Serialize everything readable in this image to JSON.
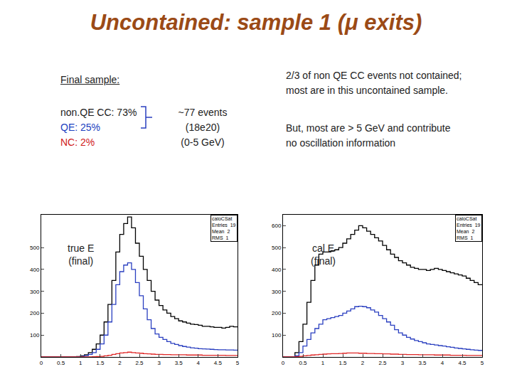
{
  "title": "Uncontained: sample 1 (μ exits)",
  "left_text": {
    "heading": "Final sample:",
    "items": [
      {
        "text": "non.QE CC: 73%",
        "color": "#1a1a1a"
      },
      {
        "text": "QE: 25%",
        "color": "#2040c0"
      },
      {
        "text": "NC: 2%",
        "color": "#d02020"
      }
    ]
  },
  "summary": [
    "~77 events",
    "(18e20)",
    "(0-5 GeV)"
  ],
  "notes": [
    [
      "2/3 of non QE CC events not contained;",
      "most are in this uncontained sample."
    ],
    [
      "But, most are > 5 GeV and contribute",
      "no oscillation information"
    ]
  ],
  "chart_data": [
    {
      "type": "histogram",
      "annotations": [
        "true E",
        "(final)"
      ],
      "stats_title": "caloCSat",
      "stats": [
        "Entries  19",
        "Mean  2",
        "RMS  1"
      ],
      "bins": [
        0,
        0.1,
        0.2,
        0.3,
        0.4,
        0.5,
        0.6,
        0.7,
        0.8,
        0.9,
        1,
        1.1,
        1.2,
        1.3,
        1.4,
        1.5,
        1.6,
        1.7,
        1.8,
        1.9,
        2,
        2.1,
        2.2,
        2.3,
        2.4,
        2.5,
        2.6,
        2.7,
        2.8,
        2.9,
        3,
        3.1,
        3.2,
        3.3,
        3.4,
        3.5,
        3.6,
        3.7,
        3.8,
        3.9,
        4,
        4.1,
        4.2,
        4.3,
        4.4,
        4.5,
        4.6,
        4.7,
        4.8,
        4.9,
        5
      ],
      "series": [
        {
          "color": "#000000",
          "values": [
            0,
            0,
            0,
            0,
            0,
            0,
            0,
            0,
            0,
            2,
            5,
            10,
            20,
            35,
            60,
            100,
            160,
            240,
            350,
            480,
            560,
            610,
            640,
            590,
            520,
            460,
            400,
            350,
            300,
            260,
            235,
            215,
            200,
            185,
            175,
            165,
            160,
            155,
            150,
            148,
            145,
            140,
            140,
            138,
            135,
            135,
            132,
            135,
            140,
            138
          ]
        },
        {
          "color": "#2a3fc0",
          "values": [
            0,
            0,
            0,
            0,
            0,
            0,
            0,
            0,
            0,
            1,
            3,
            6,
            12,
            20,
            35,
            60,
            100,
            160,
            240,
            330,
            390,
            420,
            430,
            400,
            340,
            280,
            220,
            170,
            130,
            105,
            90,
            80,
            70,
            62,
            57,
            52,
            48,
            45,
            42,
            40,
            38,
            37,
            36,
            35,
            34,
            33,
            33,
            32,
            32,
            31
          ]
        },
        {
          "color": "#e02828",
          "values": [
            0,
            0,
            0,
            0,
            0,
            0,
            0,
            0,
            0,
            0,
            0,
            0,
            0,
            1,
            2,
            3,
            5,
            8,
            12,
            15,
            18,
            20,
            22,
            20,
            18,
            17,
            15,
            14,
            13,
            12,
            12,
            11,
            11,
            10,
            10,
            10,
            10,
            9,
            9,
            9,
            9,
            8,
            8,
            8,
            8,
            8,
            8,
            7,
            7,
            7
          ]
        }
      ],
      "xlim": [
        0,
        5
      ],
      "xticks": [
        0,
        0.5,
        1,
        1.5,
        2,
        2.5,
        3,
        3.5,
        4,
        4.5,
        5
      ],
      "ylim": [
        0,
        650
      ],
      "yticks": [
        100,
        200,
        300,
        400,
        500
      ],
      "grid": false
    },
    {
      "type": "histogram",
      "annotations": [
        "cal E",
        "(final)"
      ],
      "stats_title": "caloCSat",
      "stats": [
        "Entries  19",
        "Mean  2",
        "RMS  1"
      ],
      "bins": [
        0,
        0.1,
        0.2,
        0.3,
        0.4,
        0.5,
        0.6,
        0.7,
        0.8,
        0.9,
        1,
        1.1,
        1.2,
        1.3,
        1.4,
        1.5,
        1.6,
        1.7,
        1.8,
        1.9,
        2,
        2.1,
        2.2,
        2.3,
        2.4,
        2.5,
        2.6,
        2.7,
        2.8,
        2.9,
        3,
        3.1,
        3.2,
        3.3,
        3.4,
        3.5,
        3.6,
        3.7,
        3.8,
        3.9,
        4,
        4.1,
        4.2,
        4.3,
        4.4,
        4.5,
        4.6,
        4.7,
        4.8,
        4.9,
        5
      ],
      "series": [
        {
          "color": "#000000",
          "values": [
            0,
            0,
            0,
            20,
            70,
            150,
            250,
            350,
            420,
            470,
            480,
            480,
            485,
            490,
            500,
            520,
            540,
            560,
            580,
            600,
            590,
            575,
            560,
            545,
            530,
            510,
            490,
            470,
            455,
            440,
            430,
            420,
            410,
            405,
            400,
            400,
            395,
            400,
            405,
            400,
            395,
            390,
            385,
            380,
            375,
            370,
            360,
            350,
            340,
            330
          ]
        },
        {
          "color": "#2a3fc0",
          "values": [
            0,
            0,
            0,
            5,
            20,
            50,
            80,
            110,
            130,
            150,
            170,
            175,
            180,
            185,
            190,
            200,
            210,
            220,
            230,
            232,
            230,
            225,
            215,
            205,
            190,
            175,
            160,
            145,
            125,
            110,
            100,
            90,
            82,
            75,
            70,
            65,
            60,
            57,
            55,
            52,
            50,
            47,
            44,
            41,
            39,
            37,
            35,
            33,
            31,
            30
          ]
        },
        {
          "color": "#e02828",
          "values": [
            0,
            0,
            0,
            1,
            3,
            5,
            7,
            9,
            10,
            12,
            13,
            14,
            15,
            15,
            16,
            17,
            18,
            18,
            18,
            17,
            17,
            16,
            16,
            15,
            15,
            14,
            14,
            13,
            13,
            12,
            12,
            11,
            11,
            11,
            10,
            10,
            10,
            10,
            9,
            9,
            9,
            9,
            8,
            8,
            8,
            8,
            7,
            7,
            7,
            7
          ]
        }
      ],
      "xlim": [
        0,
        5
      ],
      "xticks": [
        0,
        0.5,
        1,
        1.5,
        2,
        2.5,
        3,
        3.5,
        4,
        4.5,
        5
      ],
      "ylim": [
        0,
        650
      ],
      "yticks": [
        100,
        200,
        300,
        400,
        500,
        600
      ],
      "grid": false
    }
  ]
}
